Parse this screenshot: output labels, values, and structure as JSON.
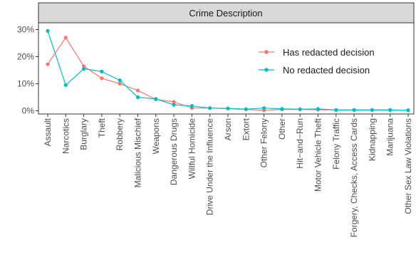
{
  "chart_data": {
    "type": "line",
    "facet_title": "Crime Description",
    "xlabel": "",
    "ylabel": "",
    "ylim": [
      0,
      0.3
    ],
    "yticks": [
      0,
      0.1,
      0.2,
      0.3
    ],
    "ytick_labels": [
      "0%",
      "10%",
      "20%",
      "30%"
    ],
    "grid": false,
    "legend_position": "right",
    "categories": [
      "Assault",
      "Narcotics",
      "Burglary",
      "Theft",
      "Robbery",
      "Malicious Mischief",
      "Weapons",
      "Dangerous Drugs",
      "Willful Homicide",
      "Drive Under the Influence",
      "Arson",
      "Extort",
      "Other Felony",
      "Other",
      "Hit−and−Run",
      "Motor Vehicle Theft",
      "Felony Traffic",
      "Forgery, Checks, Access Cards",
      "Kidnapping",
      "Marijuana",
      "Other Sex Law Violations"
    ],
    "series": [
      {
        "name": "Has redacted decision",
        "color": "#F8766D",
        "values": [
          0.172,
          0.27,
          0.165,
          0.12,
          0.1,
          0.075,
          0.042,
          0.033,
          0.01,
          0.01,
          0.008,
          0.005,
          0.002,
          0.005,
          0.005,
          0.004,
          0.003,
          0.003,
          0.003,
          0.003,
          0.002
        ]
      },
      {
        "name": "No redacted decision",
        "color": "#00BFC4",
        "values": [
          0.295,
          0.095,
          0.155,
          0.145,
          0.113,
          0.05,
          0.044,
          0.022,
          0.018,
          0.01,
          0.009,
          0.006,
          0.01,
          0.007,
          0.006,
          0.007,
          0.003,
          0.003,
          0.003,
          0.003,
          0.002
        ]
      }
    ]
  }
}
